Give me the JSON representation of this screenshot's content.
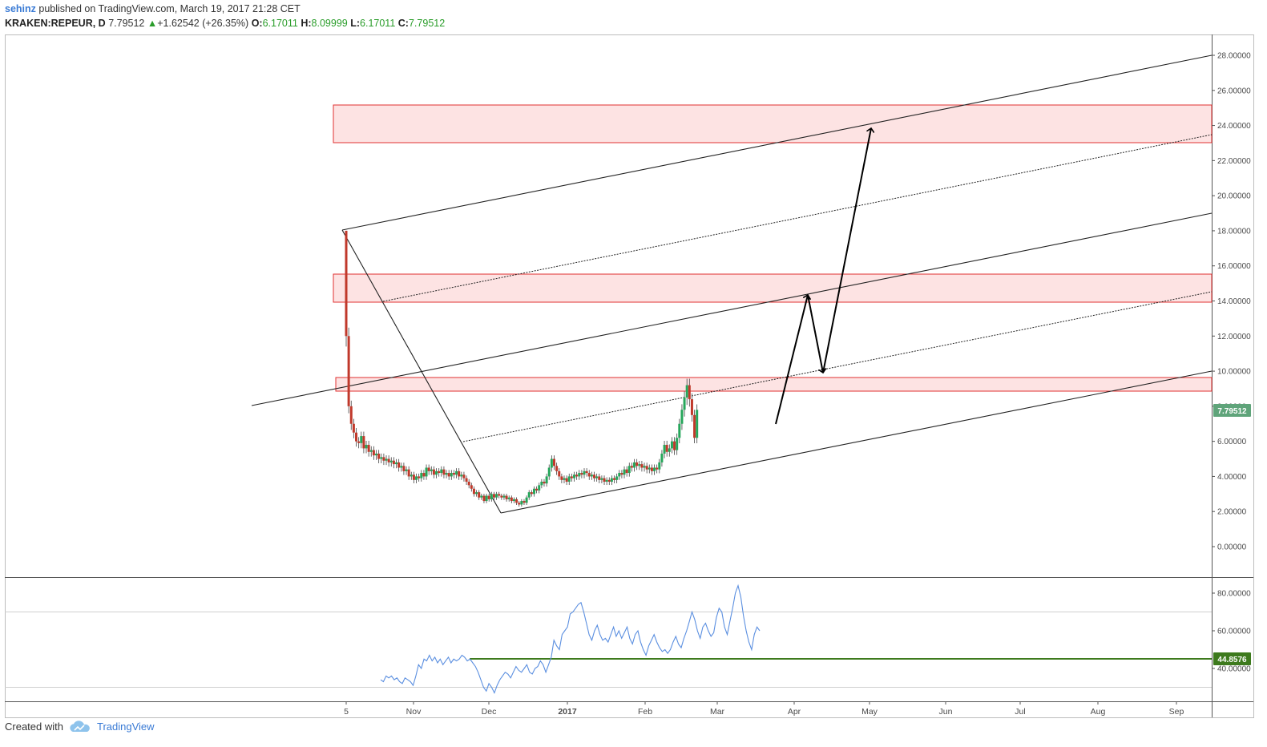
{
  "header": {
    "author": "sehinz",
    "published_text": "published on TradingView.com, March 19, 2017 21:28 CET"
  },
  "legend": {
    "symbol": "KRAKEN:REPEUR, D",
    "last": "7.79512",
    "change": "+1.62542 (+26.35%)",
    "open_label": "O:",
    "open": "6.17011",
    "high_label": "H:",
    "high": "8.09999",
    "low_label": "L:",
    "low": "6.17011",
    "close_label": "C:",
    "close": "7.79512"
  },
  "footer": {
    "created_with": "Created with",
    "brand": "TradingView"
  },
  "colors": {
    "up": "#26a65b",
    "down": "#c0392b",
    "zone_fill": "#fde3e3",
    "zone_stroke": "#e03030",
    "rsi_line": "#5b8fe0",
    "support_line": "#3d7a1d",
    "price_badge": "#5fa47a"
  },
  "chart_data": [
    {
      "type": "candlestick",
      "symbol": "KRAKEN:REPEUR",
      "interval": "D",
      "y_axis_ticks": [
        "28.00000",
        "26.00000",
        "24.00000",
        "22.00000",
        "20.00000",
        "18.00000",
        "16.00000",
        "14.00000",
        "12.00000",
        "10.00000",
        "8.00000",
        "6.00000",
        "4.00000",
        "2.00000",
        "0.00000"
      ],
      "ylim": [
        -2,
        29
      ],
      "x_axis_ticks": [
        "5",
        "Nov",
        "Dec",
        "2017",
        "Feb",
        "Mar",
        "Apr",
        "May",
        "Jun",
        "Jul",
        "Aug",
        "Sep"
      ],
      "price_label": "7.79512",
      "series_close": [
        {
          "date": "2016-10-05",
          "close": 12.0
        },
        {
          "date": "2016-10-06",
          "close": 8.0
        },
        {
          "date": "2016-10-07",
          "close": 7.0
        },
        {
          "date": "2016-10-08",
          "close": 6.5
        },
        {
          "date": "2016-10-09",
          "close": 6.0
        },
        {
          "date": "2016-10-10",
          "close": 5.9
        },
        {
          "date": "2016-10-11",
          "close": 6.3
        },
        {
          "date": "2016-10-12",
          "close": 5.6
        },
        {
          "date": "2016-10-13",
          "close": 5.8
        },
        {
          "date": "2016-10-14",
          "close": 5.4
        },
        {
          "date": "2016-10-15",
          "close": 5.5
        },
        {
          "date": "2016-10-16",
          "close": 5.2
        },
        {
          "date": "2016-10-17",
          "close": 5.3
        },
        {
          "date": "2016-10-18",
          "close": 5.0
        },
        {
          "date": "2016-10-19",
          "close": 5.1
        },
        {
          "date": "2016-10-20",
          "close": 4.9
        },
        {
          "date": "2016-10-21",
          "close": 5.0
        },
        {
          "date": "2016-10-22",
          "close": 4.8
        },
        {
          "date": "2016-10-23",
          "close": 4.9
        },
        {
          "date": "2016-10-24",
          "close": 4.7
        },
        {
          "date": "2016-10-25",
          "close": 4.8
        },
        {
          "date": "2016-10-26",
          "close": 4.5
        },
        {
          "date": "2016-10-27",
          "close": 4.6
        },
        {
          "date": "2016-10-28",
          "close": 4.3
        },
        {
          "date": "2016-10-29",
          "close": 4.4
        },
        {
          "date": "2016-10-30",
          "close": 4.0
        },
        {
          "date": "2016-10-31",
          "close": 4.1
        },
        {
          "date": "2016-11-01",
          "close": 3.8
        },
        {
          "date": "2016-11-02",
          "close": 4.0
        },
        {
          "date": "2016-11-03",
          "close": 3.9
        },
        {
          "date": "2016-11-04",
          "close": 4.2
        },
        {
          "date": "2016-11-05",
          "close": 4.0
        },
        {
          "date": "2016-11-06",
          "close": 4.5
        },
        {
          "date": "2016-11-07",
          "close": 4.3
        },
        {
          "date": "2016-11-08",
          "close": 4.4
        },
        {
          "date": "2016-11-09",
          "close": 4.1
        },
        {
          "date": "2016-11-10",
          "close": 4.3
        },
        {
          "date": "2016-11-11",
          "close": 4.2
        },
        {
          "date": "2016-11-12",
          "close": 4.4
        },
        {
          "date": "2016-11-13",
          "close": 4.1
        },
        {
          "date": "2016-11-14",
          "close": 4.2
        },
        {
          "date": "2016-11-15",
          "close": 4.0
        },
        {
          "date": "2016-11-16",
          "close": 4.2
        },
        {
          "date": "2016-11-17",
          "close": 4.1
        },
        {
          "date": "2016-11-18",
          "close": 4.3
        },
        {
          "date": "2016-11-19",
          "close": 4.0
        },
        {
          "date": "2016-11-20",
          "close": 4.1
        },
        {
          "date": "2016-11-21",
          "close": 3.9
        },
        {
          "date": "2016-11-22",
          "close": 3.7
        },
        {
          "date": "2016-11-23",
          "close": 3.5
        },
        {
          "date": "2016-11-24",
          "close": 3.3
        },
        {
          "date": "2016-11-25",
          "close": 3.0
        },
        {
          "date": "2016-11-26",
          "close": 3.1
        },
        {
          "date": "2016-11-27",
          "close": 2.8
        },
        {
          "date": "2016-11-28",
          "close": 2.9
        },
        {
          "date": "2016-11-29",
          "close": 2.6
        },
        {
          "date": "2016-11-30",
          "close": 2.9
        },
        {
          "date": "2016-12-01",
          "close": 2.7
        },
        {
          "date": "2016-12-02",
          "close": 3.0
        },
        {
          "date": "2016-12-03",
          "close": 2.8
        },
        {
          "date": "2016-12-04",
          "close": 3.0
        },
        {
          "date": "2016-12-05",
          "close": 2.9
        },
        {
          "date": "2016-12-06",
          "close": 2.8
        },
        {
          "date": "2016-12-07",
          "close": 2.9
        },
        {
          "date": "2016-12-08",
          "close": 2.7
        },
        {
          "date": "2016-12-09",
          "close": 2.8
        },
        {
          "date": "2016-12-10",
          "close": 2.6
        },
        {
          "date": "2016-12-11",
          "close": 2.7
        },
        {
          "date": "2016-12-12",
          "close": 2.5
        },
        {
          "date": "2016-12-13",
          "close": 2.4
        },
        {
          "date": "2016-12-14",
          "close": 2.6
        },
        {
          "date": "2016-12-15",
          "close": 2.5
        },
        {
          "date": "2016-12-16",
          "close": 2.8
        },
        {
          "date": "2016-12-17",
          "close": 3.1
        },
        {
          "date": "2016-12-18",
          "close": 3.0
        },
        {
          "date": "2016-12-19",
          "close": 3.3
        },
        {
          "date": "2016-12-20",
          "close": 3.2
        },
        {
          "date": "2016-12-21",
          "close": 3.5
        },
        {
          "date": "2016-12-22",
          "close": 3.7
        },
        {
          "date": "2016-12-23",
          "close": 3.6
        },
        {
          "date": "2016-12-24",
          "close": 4.0
        },
        {
          "date": "2016-12-25",
          "close": 4.5
        },
        {
          "date": "2016-12-26",
          "close": 5.0
        },
        {
          "date": "2016-12-27",
          "close": 4.6
        },
        {
          "date": "2016-12-28",
          "close": 4.3
        },
        {
          "date": "2016-12-29",
          "close": 4.0
        },
        {
          "date": "2016-12-30",
          "close": 3.8
        },
        {
          "date": "2016-12-31",
          "close": 3.9
        },
        {
          "date": "2017-01-01",
          "close": 3.7
        },
        {
          "date": "2017-01-02",
          "close": 4.0
        },
        {
          "date": "2017-01-03",
          "close": 3.9
        },
        {
          "date": "2017-01-04",
          "close": 4.1
        },
        {
          "date": "2017-01-05",
          "close": 4.0
        },
        {
          "date": "2017-01-06",
          "close": 4.2
        },
        {
          "date": "2017-01-07",
          "close": 4.1
        },
        {
          "date": "2017-01-08",
          "close": 4.3
        },
        {
          "date": "2017-01-09",
          "close": 4.2
        },
        {
          "date": "2017-01-10",
          "close": 4.0
        },
        {
          "date": "2017-01-11",
          "close": 4.1
        },
        {
          "date": "2017-01-12",
          "close": 3.9
        },
        {
          "date": "2017-01-13",
          "close": 4.0
        },
        {
          "date": "2017-01-14",
          "close": 3.8
        },
        {
          "date": "2017-01-15",
          "close": 3.9
        },
        {
          "date": "2017-01-16",
          "close": 3.7
        },
        {
          "date": "2017-01-17",
          "close": 3.8
        },
        {
          "date": "2017-01-18",
          "close": 3.7
        },
        {
          "date": "2017-01-19",
          "close": 3.9
        },
        {
          "date": "2017-01-20",
          "close": 3.8
        },
        {
          "date": "2017-01-21",
          "close": 4.0
        },
        {
          "date": "2017-01-22",
          "close": 4.2
        },
        {
          "date": "2017-01-23",
          "close": 4.1
        },
        {
          "date": "2017-01-24",
          "close": 4.4
        },
        {
          "date": "2017-01-25",
          "close": 4.2
        },
        {
          "date": "2017-01-26",
          "close": 4.6
        },
        {
          "date": "2017-01-27",
          "close": 4.5
        },
        {
          "date": "2017-01-28",
          "close": 4.8
        },
        {
          "date": "2017-01-29",
          "close": 4.6
        },
        {
          "date": "2017-01-30",
          "close": 4.7
        },
        {
          "date": "2017-01-31",
          "close": 4.5
        },
        {
          "date": "2017-02-01",
          "close": 4.6
        },
        {
          "date": "2017-02-02",
          "close": 4.4
        },
        {
          "date": "2017-02-03",
          "close": 4.5
        },
        {
          "date": "2017-02-04",
          "close": 4.3
        },
        {
          "date": "2017-02-05",
          "close": 4.5
        },
        {
          "date": "2017-02-06",
          "close": 4.4
        },
        {
          "date": "2017-02-07",
          "close": 4.8
        },
        {
          "date": "2017-02-08",
          "close": 5.3
        },
        {
          "date": "2017-02-09",
          "close": 5.8
        },
        {
          "date": "2017-02-10",
          "close": 5.4
        },
        {
          "date": "2017-02-11",
          "close": 5.6
        },
        {
          "date": "2017-02-12",
          "close": 6.0
        },
        {
          "date": "2017-02-13",
          "close": 5.5
        },
        {
          "date": "2017-02-14",
          "close": 6.2
        },
        {
          "date": "2017-02-15",
          "close": 7.0
        },
        {
          "date": "2017-02-16",
          "close": 7.8
        },
        {
          "date": "2017-02-17",
          "close": 8.5
        },
        {
          "date": "2017-02-18",
          "close": 9.2
        },
        {
          "date": "2017-02-19",
          "close": 8.4
        },
        {
          "date": "2017-02-20",
          "close": 7.5
        },
        {
          "date": "2017-02-21",
          "close": 6.2
        },
        {
          "date": "2017-02-22",
          "close": 7.79512
        }
      ]
    },
    {
      "type": "line",
      "name": "RSI",
      "y_axis_ticks": [
        "80.00000",
        "60.00000",
        "40.00000"
      ],
      "ylim": [
        24,
        86
      ],
      "levels": [
        70,
        30
      ],
      "support_value": 44.8576,
      "support_label": "44.8576",
      "values": [
        34,
        33,
        36,
        35,
        36,
        34,
        35,
        33,
        32,
        35,
        34,
        33,
        31,
        36,
        42,
        40,
        45,
        44,
        47,
        44,
        46,
        43,
        45,
        42,
        44,
        46,
        43,
        45,
        44,
        45,
        47,
        46,
        44,
        45,
        43,
        41,
        38,
        34,
        30,
        28,
        32,
        30,
        27,
        31,
        34,
        36,
        38,
        37,
        35,
        38,
        41,
        39,
        38,
        40,
        42,
        38,
        37,
        40,
        41,
        44,
        42,
        38,
        42,
        46,
        55,
        52,
        50,
        58,
        60,
        62,
        69,
        70,
        72,
        74,
        75,
        70,
        64,
        58,
        55,
        60,
        63,
        58,
        55,
        56,
        54,
        58,
        62,
        57,
        60,
        56,
        59,
        62,
        56,
        53,
        58,
        60,
        54,
        50,
        47,
        52,
        55,
        58,
        54,
        51,
        49,
        50,
        48,
        50,
        54,
        57,
        53,
        51,
        56,
        60,
        65,
        70,
        66,
        60,
        56,
        62,
        64,
        60,
        57,
        59,
        67,
        72,
        70,
        62,
        58,
        65,
        72,
        80,
        84,
        78,
        68,
        60,
        54,
        50,
        58,
        62,
        60
      ]
    }
  ]
}
